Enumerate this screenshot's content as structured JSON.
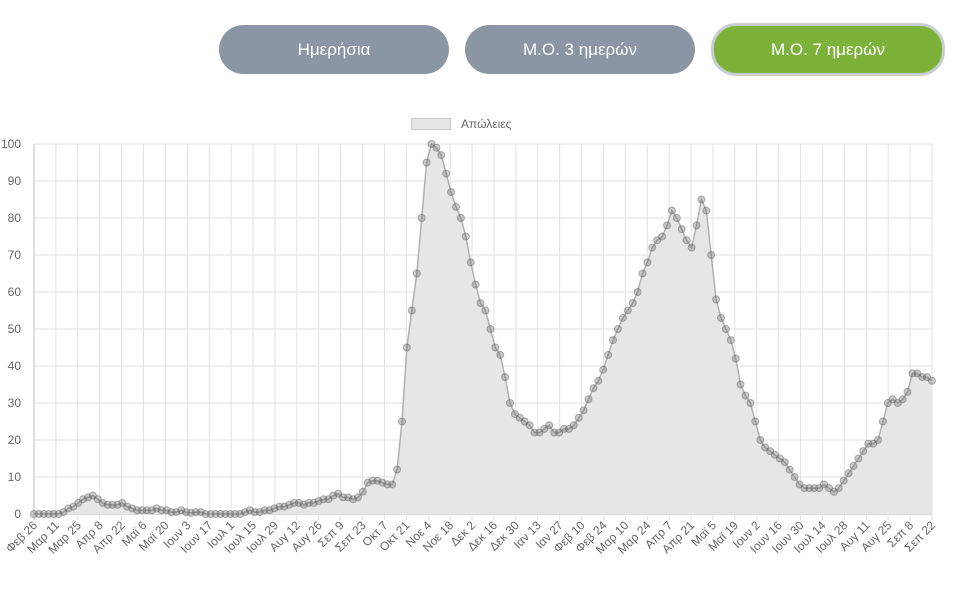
{
  "tabs": [
    {
      "label": "Ημερήσια",
      "active": false
    },
    {
      "label": "Μ.Ο. 3 ημερών",
      "active": false
    },
    {
      "label": "Μ.Ο. 7 ημερών",
      "active": true
    }
  ],
  "colors": {
    "tab_inactive": "#8a96a3",
    "tab_active": "#7cb23a",
    "fill": "#e6e6e6",
    "line": "#b0b0b0",
    "point": "#6f6f6f",
    "grid": "#e0e0e0"
  },
  "chart_data": {
    "type": "line",
    "title": "",
    "legend": [
      "Απώλειες"
    ],
    "legend_position": "top",
    "xlabel": "",
    "ylabel": "",
    "ylim": [
      0,
      100
    ],
    "yticks": [
      0,
      10,
      20,
      30,
      40,
      50,
      60,
      70,
      80,
      90,
      100
    ],
    "grid": true,
    "categories": [
      "Φεβ 26",
      "Μαρ 11",
      "Μαρ 25",
      "Απρ 8",
      "Απρ 22",
      "Μαϊ 6",
      "Μαϊ 20",
      "Ιουν 3",
      "Ιουν 17",
      "Ιουλ 1",
      "Ιουλ 15",
      "Ιουλ 29",
      "Αυγ 12",
      "Αυγ 26",
      "Σεπ 9",
      "Σεπ 23",
      "Οκτ 7",
      "Οκτ 21",
      "Νοε 4",
      "Νοε 18",
      "Δεκ 2",
      "Δεκ 16",
      "Δεκ 30",
      "Ιαν 13",
      "Ιαν 27",
      "Φεβ 10",
      "Φεβ 24",
      "Μαρ 10",
      "Μαρ 24",
      "Απρ 7",
      "Απρ 21",
      "Μαϊ 5",
      "Μαϊ 19",
      "Ιουν 2",
      "Ιουν 16",
      "Ιουν 30",
      "Ιουλ 14",
      "Ιουλ 28",
      "Αυγ 11",
      "Αυγ 25",
      "Σεπ 8",
      "Σεπ 22"
    ],
    "series": [
      {
        "name": "Απώλειες",
        "values": [
          0,
          0,
          0,
          0,
          0,
          0,
          0.5,
          1.5,
          2,
          3,
          4,
          4.5,
          5,
          4,
          3,
          2.5,
          2.5,
          2.5,
          3,
          2,
          1.5,
          1,
          1,
          1,
          1,
          1.5,
          1,
          1,
          0.5,
          0.5,
          1,
          0.5,
          0.3,
          0.5,
          0.5,
          0,
          0,
          0,
          0,
          0,
          0,
          0,
          0,
          0.5,
          1,
          0.5,
          0.5,
          1,
          1,
          1.5,
          2,
          2,
          2.5,
          3,
          3,
          2.5,
          3,
          3,
          3.5,
          4,
          4,
          5,
          5.5,
          4.5,
          4.5,
          4,
          4.5,
          6,
          8.5,
          9,
          9,
          8.5,
          8,
          8,
          12,
          25,
          45,
          55,
          65,
          80,
          95,
          100,
          99,
          97,
          92,
          87,
          83,
          80,
          75,
          68,
          62,
          57,
          55,
          50,
          45,
          43,
          37,
          30,
          27,
          26,
          25,
          24,
          22,
          22,
          23,
          24,
          22,
          22,
          23,
          23,
          24,
          26,
          28,
          31,
          34,
          36,
          39,
          43,
          47,
          50,
          53,
          55,
          57,
          60,
          65,
          68,
          72,
          74,
          75,
          78,
          82,
          80,
          77,
          74,
          72,
          78,
          85,
          82,
          70,
          58,
          53,
          50,
          47,
          42,
          35,
          32,
          30,
          25,
          20,
          18,
          17,
          16,
          15,
          14,
          12,
          10,
          8,
          7,
          7,
          7,
          7,
          8,
          7,
          6,
          7,
          9,
          11,
          13,
          15,
          17,
          19,
          19,
          20,
          25,
          30,
          31,
          30,
          31,
          33,
          38,
          38,
          37,
          37,
          36
        ]
      }
    ]
  }
}
